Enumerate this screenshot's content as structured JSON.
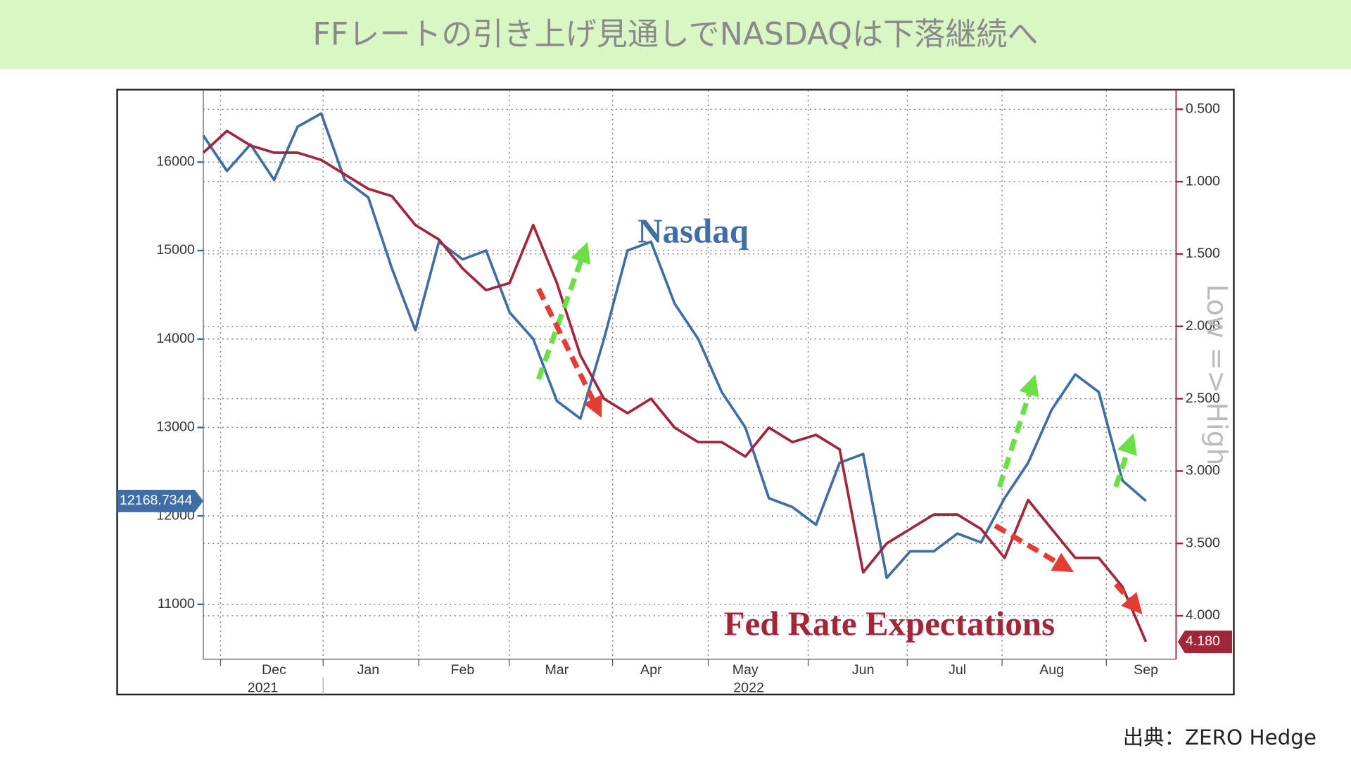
{
  "header": {
    "title": "FFレートの引き上げ見通しでNASDAQは下落継続へ"
  },
  "source": "出典：ZERO Hedge",
  "chart_data": {
    "type": "line",
    "categories": [
      null,
      null,
      null,
      "Dec",
      null,
      null,
      null,
      "Jan",
      null,
      null,
      null,
      "Feb",
      null,
      null,
      null,
      "Mar",
      null,
      null,
      null,
      "Apr",
      null,
      null,
      null,
      "May",
      null,
      null,
      null,
      null,
      "Jun",
      null,
      null,
      null,
      "Jul",
      null,
      null,
      null,
      "Aug",
      null,
      null,
      null,
      "Sep"
    ],
    "year_labels": [
      "2021",
      "2022"
    ],
    "series": [
      {
        "name": "Nasdaq",
        "color": "#3f6da6",
        "values": [
          16300,
          15900,
          16200,
          15800,
          16400,
          16550,
          15800,
          15600,
          14800,
          14100,
          15100,
          14900,
          15000,
          14300,
          14000,
          13300,
          13100,
          14000,
          15000,
          15100,
          14400,
          14000,
          13400,
          13000,
          12200,
          12100,
          11900,
          12600,
          12700,
          11300,
          11600,
          11600,
          11800,
          11700,
          12200,
          12600,
          13200,
          13600,
          13400,
          12400,
          12168.7344
        ]
      },
      {
        "name": "Fed Rate Expectations",
        "color": "#a3253a",
        "axis": "y2",
        "values": [
          0.8,
          0.65,
          0.75,
          0.8,
          0.8,
          0.85,
          0.95,
          1.05,
          1.1,
          1.3,
          1.4,
          1.6,
          1.75,
          1.7,
          1.3,
          1.7,
          2.2,
          2.5,
          2.6,
          2.5,
          2.7,
          2.8,
          2.8,
          2.9,
          2.7,
          2.8,
          2.75,
          2.85,
          3.7,
          3.5,
          3.4,
          3.3,
          3.3,
          3.4,
          3.6,
          3.2,
          3.4,
          3.6,
          3.6,
          3.8,
          4.18
        ],
        "value_labels": [
          null,
          null,
          null,
          null,
          null,
          null,
          null,
          null,
          null,
          null,
          null,
          null,
          null,
          null,
          null,
          null,
          null,
          null,
          null,
          null,
          null,
          null,
          null,
          null,
          null,
          null,
          null,
          null,
          null,
          null,
          null,
          null,
          null,
          null,
          null,
          null,
          null,
          null,
          null,
          null,
          "4.180"
        ]
      }
    ],
    "ylim": [
      10380,
      16810
    ],
    "yticks": [
      11000,
      12000,
      13000,
      14000,
      15000,
      16000
    ],
    "y2lim": [
      0.37,
      4.3
    ],
    "y2_inverted": true,
    "y2label": "Low => High",
    "y2ticks": [
      {
        "value": 0.5,
        "label": "0.500"
      },
      {
        "value": 1,
        "label": "1.000"
      },
      {
        "value": 1.5,
        "label": "1.500"
      },
      {
        "value": 2,
        "label": "2.000"
      },
      {
        "value": 2.5,
        "label": "2.500"
      },
      {
        "value": 3,
        "label": "3.000"
      },
      {
        "value": 3.5,
        "label": "3.500"
      },
      {
        "value": 4,
        "label": "4.000"
      }
    ],
    "grid": true
  }
}
